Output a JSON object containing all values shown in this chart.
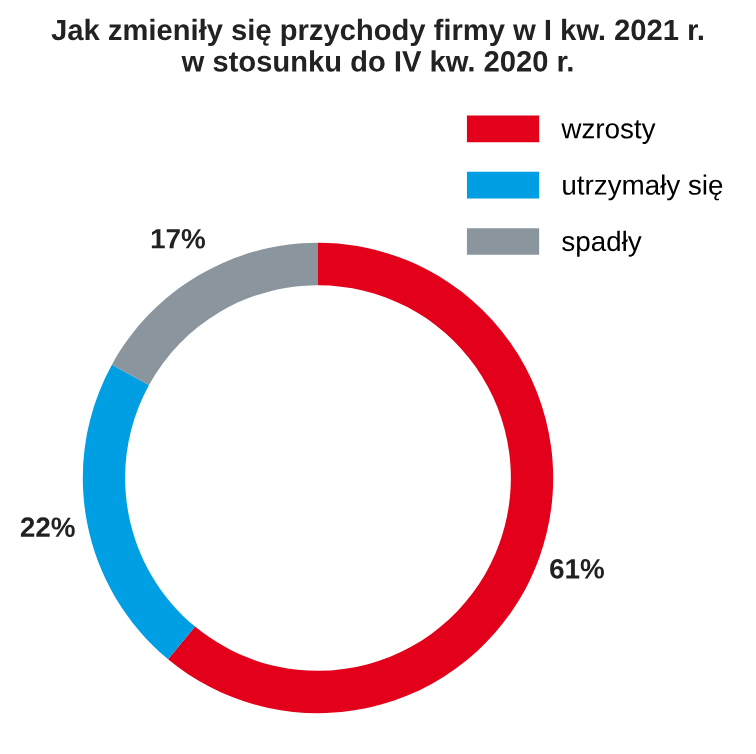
{
  "chart_data": {
    "type": "donut",
    "title": "Jak zmieniły się przychody firmy w I kw. 2021 r.\nw stosunku do IV kw. 2020 r.",
    "categories": [
      "wzrosty",
      "utrzymały się",
      "spadły"
    ],
    "values": [
      61,
      22,
      17
    ],
    "colors": [
      "#e2001a",
      "#009fe3",
      "#8a959e"
    ],
    "value_labels": [
      "61%",
      "22%",
      "17%"
    ],
    "legend": "top right"
  }
}
